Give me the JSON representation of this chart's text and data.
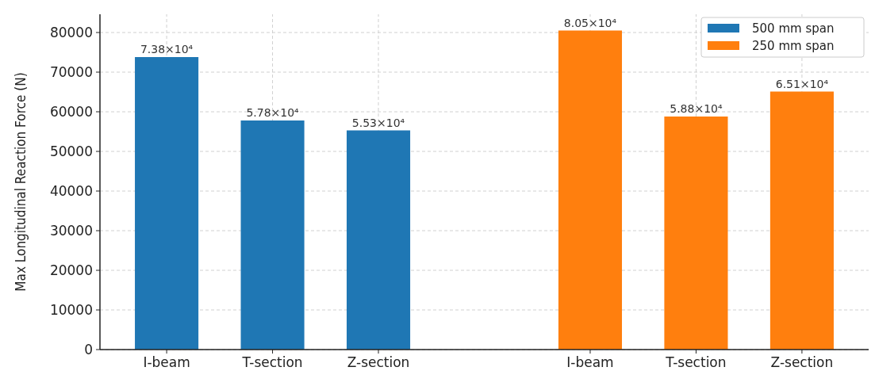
{
  "chart_data": {
    "type": "bar",
    "ylabel": "Max Longitudinal Reaction Force (N)",
    "categories": [
      "I-beam",
      "T-section",
      "Z-section",
      null,
      "I-beam",
      "T-section",
      "Z-section"
    ],
    "series": [
      {
        "name": "500 mm span",
        "color": "#1f77b4",
        "values": [
          73800,
          57800,
          55300,
          null,
          null,
          null,
          null
        ],
        "value_labels": [
          "7.38×10⁴",
          "5.78×10⁴",
          "5.53×10⁴",
          null,
          null,
          null,
          null
        ]
      },
      {
        "name": "250 mm span",
        "color": "#ff7f0e",
        "values": [
          null,
          null,
          null,
          null,
          80500,
          58800,
          65100
        ],
        "value_labels": [
          null,
          null,
          null,
          null,
          "8.05×10⁴",
          "5.88×10⁴",
          "6.51×10⁴"
        ]
      }
    ],
    "ylim": [
      0,
      84600
    ],
    "yticks": [
      0,
      10000,
      20000,
      30000,
      40000,
      50000,
      60000,
      70000,
      80000
    ],
    "grid": true,
    "legend": "top right"
  }
}
